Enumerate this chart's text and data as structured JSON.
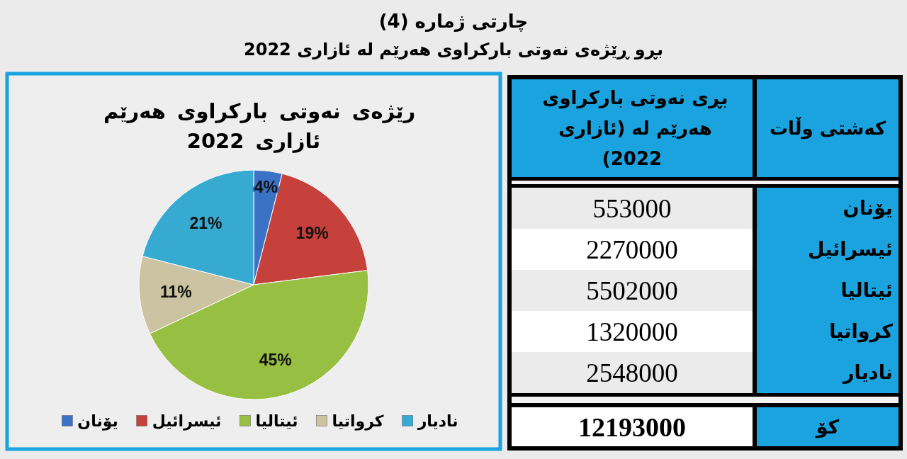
{
  "chart_data": [
    {
      "type": "pie",
      "title": "چارتی ژمارە (4)",
      "subtitle": "بڕو ڕێژەی نەوتی بارکراوی هەرێم لە ئازاری 2022",
      "annotations": [
        "رێژەی نەوتی بارکراوی هەرێم ئازاری 2022"
      ],
      "categories": [
        "یۆنان",
        "ئیسرائیل",
        "ئیتالیا",
        "کرواتیا",
        "نادیار"
      ],
      "values": [
        4,
        19,
        45,
        11,
        21
      ],
      "value_labels": [
        "4%",
        "19%",
        "45%",
        "11%",
        "21%"
      ],
      "colors": [
        "#3a72c6",
        "#c6403c",
        "#97bf42",
        "#cbc3a2",
        "#37aad2"
      ],
      "legend": "bottom"
    },
    {
      "type": "other",
      "categories": [
        "یۆنان",
        "ئیسرائیل",
        "ئیتالیا",
        "کرواتیا",
        "نادیار"
      ],
      "values": [
        553000,
        2270000,
        5502000,
        1320000,
        2548000
      ],
      "data_labels": true,
      "totals": [
        "12193000"
      ],
      "annotations": [
        "بڕی نەوتی بارکراوی هەرێم لە (ئازاری 2022)",
        "کەشتی وڵات",
        "کۆ"
      ]
    }
  ]
}
